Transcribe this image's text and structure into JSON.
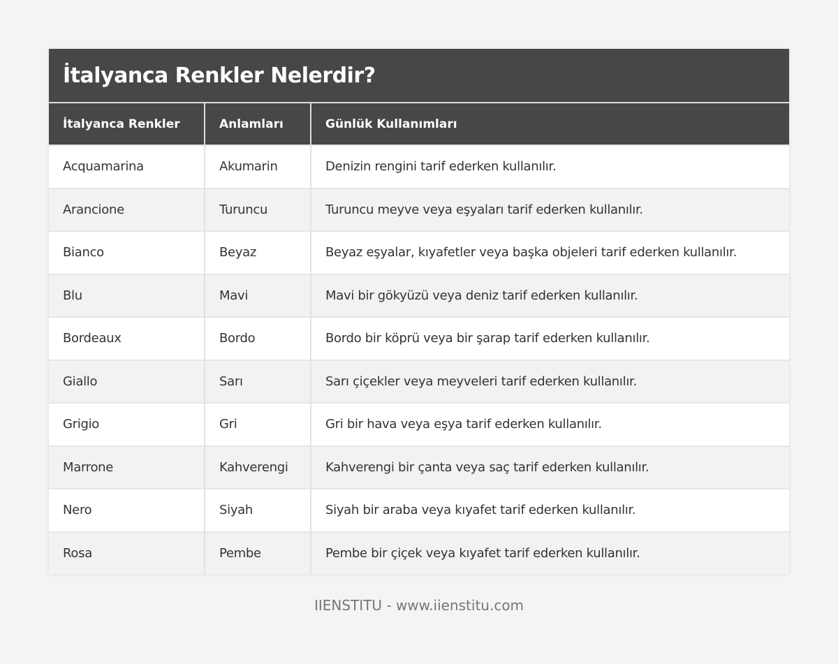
{
  "title": "İtalyanca Renkler Nelerdir?",
  "columns": [
    "İtalyanca Renkler",
    "Anlamları",
    "Günlük Kullanımları"
  ],
  "rows": [
    [
      "Acquamarina",
      "Akumarin",
      "Denizin rengini tarif ederken kullanılır."
    ],
    [
      "Arancione",
      "Turuncu",
      "Turuncu meyve veya eşyaları tarif ederken kullanılır."
    ],
    [
      "Bianco",
      "Beyaz",
      "Beyaz eşyalar, kıyafetler veya başka objeleri tarif ederken kullanılır."
    ],
    [
      "Blu",
      "Mavi",
      "Mavi bir gökyüzü veya deniz tarif ederken kullanılır."
    ],
    [
      "Bordeaux",
      "Bordo",
      "Bordo bir köprü veya bir şarap tarif ederken kullanılır."
    ],
    [
      "Giallo",
      "Sarı",
      "Sarı çiçekler veya meyveleri tarif ederken kullanılır."
    ],
    [
      "Grigio",
      "Gri",
      "Gri bir hava veya eşya tarif ederken kullanılır."
    ],
    [
      "Marrone",
      "Kahverengi",
      "Kahverengi bir çanta veya saç tarif ederken kullanılır."
    ],
    [
      "Nero",
      "Siyah",
      "Siyah bir araba veya kıyafet tarif ederken kullanılır."
    ],
    [
      "Rosa",
      "Pembe",
      "Pembe bir çiçek veya kıyafet tarif ederken kullanılır."
    ]
  ],
  "footer": "IIENSTITU - www.iienstitu.com",
  "colors": {
    "header_bg": "#474747",
    "page_bg": "#f4f4f4",
    "stripe": "#f2f2f2"
  }
}
